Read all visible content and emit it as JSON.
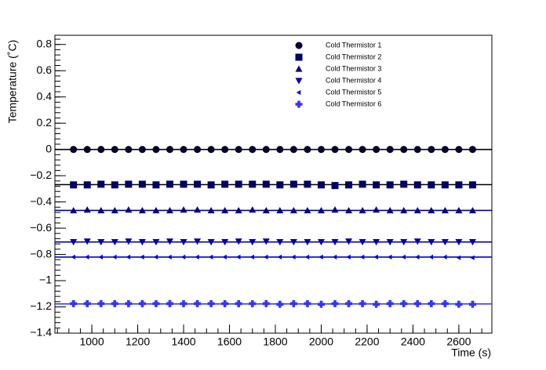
{
  "chart_data": {
    "type": "scatter",
    "x_label": "Time (s)",
    "y_label": "Temperature (˚C)",
    "x": [
      920,
      980,
      1040,
      1100,
      1160,
      1220,
      1280,
      1340,
      1400,
      1460,
      1520,
      1580,
      1640,
      1700,
      1760,
      1820,
      1880,
      1940,
      2000,
      2060,
      2120,
      2180,
      2240,
      2300,
      2360,
      2420,
      2480,
      2540,
      2600,
      2660
    ],
    "series": [
      {
        "name": "Cold Thermistor 1",
        "color": "#00002a",
        "marker": "circle",
        "fit": 0,
        "values": [
          0,
          0,
          0,
          0,
          0,
          0,
          0,
          0,
          0,
          0,
          0,
          0,
          0,
          0,
          0,
          0,
          0,
          0,
          0,
          0,
          0,
          0,
          0,
          0,
          0,
          0,
          0,
          0,
          0,
          0
        ]
      },
      {
        "name": "Cold Thermistor 2",
        "color": "#000066",
        "marker": "square",
        "fit": -0.268,
        "values": [
          -0.27,
          -0.27,
          -0.265,
          -0.27,
          -0.265,
          -0.265,
          -0.27,
          -0.265,
          -0.265,
          -0.265,
          -0.27,
          -0.265,
          -0.265,
          -0.265,
          -0.265,
          -0.27,
          -0.265,
          -0.265,
          -0.27,
          -0.275,
          -0.27,
          -0.265,
          -0.27,
          -0.27,
          -0.265,
          -0.27,
          -0.27,
          -0.27,
          -0.27,
          -0.27
        ]
      },
      {
        "name": "Cold Thermistor 3",
        "color": "#000088",
        "marker": "triangle-up",
        "fit": -0.465,
        "values": [
          -0.465,
          -0.46,
          -0.465,
          -0.465,
          -0.46,
          -0.465,
          -0.465,
          -0.465,
          -0.46,
          -0.46,
          -0.465,
          -0.465,
          -0.465,
          -0.46,
          -0.465,
          -0.465,
          -0.465,
          -0.465,
          -0.465,
          -0.46,
          -0.465,
          -0.465,
          -0.46,
          -0.465,
          -0.465,
          -0.465,
          -0.465,
          -0.465,
          -0.465,
          -0.465
        ]
      },
      {
        "name": "Cold Thermistor 4",
        "color": "#0000aa",
        "marker": "triangle-down",
        "fit": -0.705,
        "values": [
          -0.705,
          -0.7,
          -0.705,
          -0.705,
          -0.7,
          -0.705,
          -0.705,
          -0.7,
          -0.705,
          -0.7,
          -0.705,
          -0.705,
          -0.7,
          -0.705,
          -0.7,
          -0.705,
          -0.705,
          -0.705,
          -0.705,
          -0.705,
          -0.7,
          -0.705,
          -0.705,
          -0.705,
          -0.705,
          -0.7,
          -0.705,
          -0.705,
          -0.705,
          -0.705
        ]
      },
      {
        "name": "Cold Thermistor 5",
        "color": "#0000dd",
        "marker": "triangle-left",
        "fit": -0.82,
        "values": [
          -0.82,
          -0.82,
          -0.82,
          -0.82,
          -0.82,
          -0.82,
          -0.82,
          -0.82,
          -0.82,
          -0.82,
          -0.82,
          -0.82,
          -0.82,
          -0.82,
          -0.82,
          -0.82,
          -0.82,
          -0.82,
          -0.82,
          -0.82,
          -0.82,
          -0.82,
          -0.82,
          -0.82,
          -0.82,
          -0.82,
          -0.82,
          -0.82,
          -0.825,
          -0.825
        ]
      },
      {
        "name": "Cold Thermistor 6",
        "color": "#3333ff",
        "marker": "cross",
        "fit": -1.177,
        "values": [
          -1.175,
          -1.175,
          -1.175,
          -1.175,
          -1.175,
          -1.175,
          -1.175,
          -1.175,
          -1.175,
          -1.175,
          -1.175,
          -1.175,
          -1.175,
          -1.175,
          -1.175,
          -1.18,
          -1.175,
          -1.175,
          -1.18,
          -1.175,
          -1.175,
          -1.175,
          -1.18,
          -1.175,
          -1.175,
          -1.175,
          -1.175,
          -1.175,
          -1.18,
          -1.18
        ]
      }
    ],
    "xlim": [
      839,
      2744
    ],
    "xticks": [
      1000,
      1200,
      1400,
      1600,
      1800,
      2000,
      2200,
      2400,
      2600
    ],
    "ylim": [
      -1.4,
      0.87
    ],
    "yticks": [
      {
        "value": -1.4,
        "label": "−1.4"
      },
      {
        "value": -1.2,
        "label": "−1.2"
      },
      {
        "value": -1,
        "label": "−1"
      },
      {
        "value": -0.8,
        "label": "−0.8"
      },
      {
        "value": -0.6,
        "label": "−0.6"
      },
      {
        "value": -0.4,
        "label": "−0.4"
      },
      {
        "value": -0.2,
        "label": "−0.2"
      },
      0,
      0.2,
      0.4,
      0.6,
      0.8
    ],
    "grid": false,
    "legend": "top-right"
  }
}
